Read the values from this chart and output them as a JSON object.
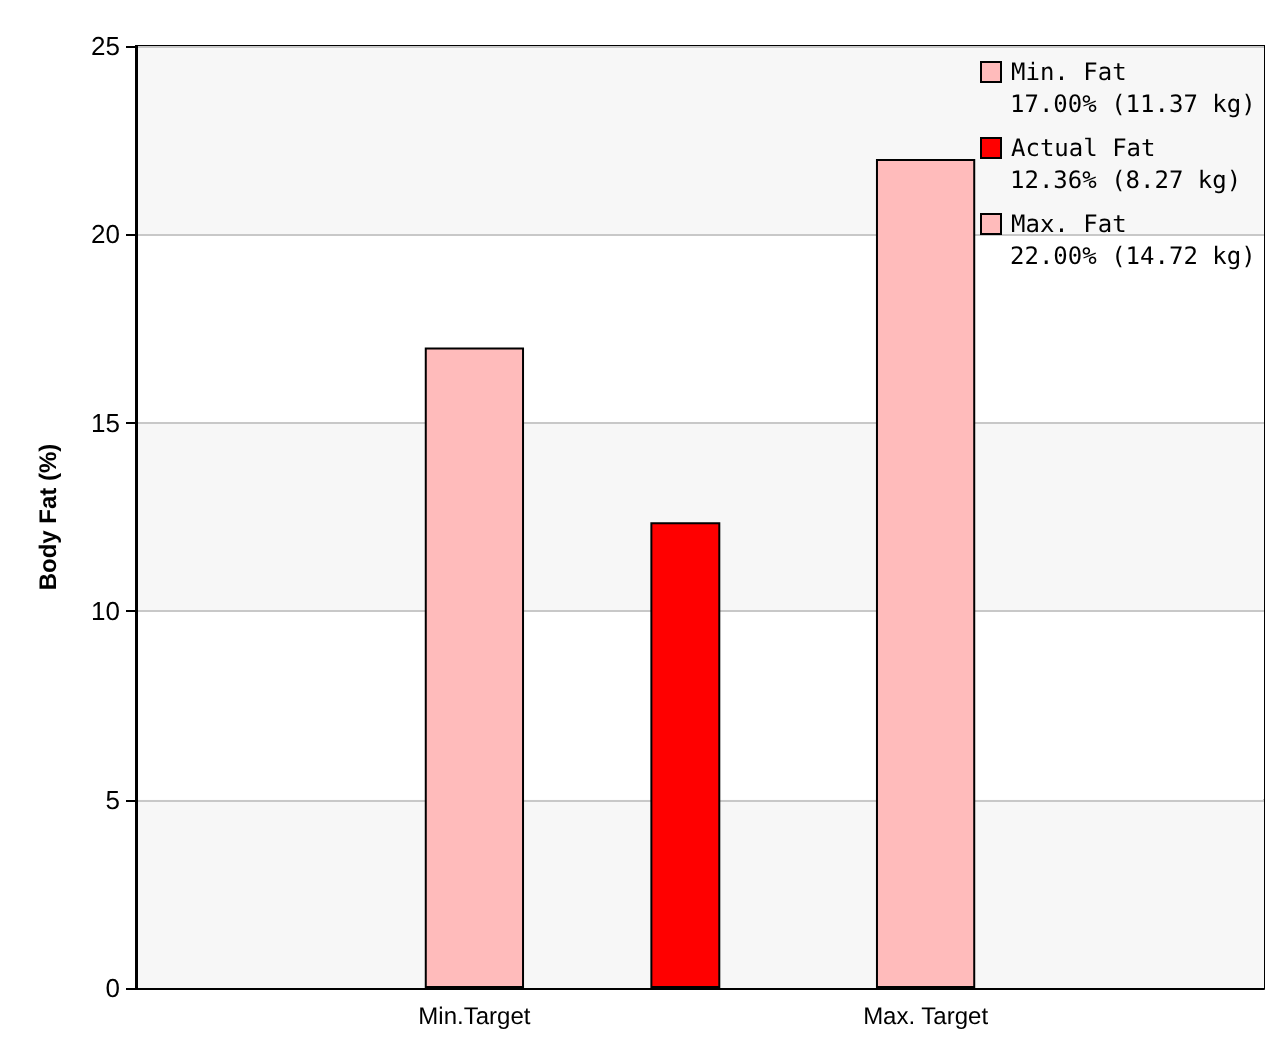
{
  "chart_data": {
    "type": "bar",
    "ylabel": "Body Fat (%)",
    "categories": [
      null,
      "Min.Target",
      null,
      "Max. Target",
      null
    ],
    "series": [
      {
        "name": "Min. Fat",
        "color": "#ffbbbb",
        "values": [
          null,
          17,
          null,
          null,
          null
        ]
      },
      {
        "name": "Actual Fat",
        "color": "#ff0000",
        "values": [
          null,
          null,
          12.36,
          null,
          null
        ]
      },
      {
        "name": "Max. Fat",
        "color": "#ffbbbb",
        "values": [
          null,
          null,
          null,
          22,
          null
        ]
      }
    ],
    "annotations": [
      "17.00% (11.37 kg)",
      "12.36% (8.27 kg)",
      "22.00% (14.72 kg)"
    ],
    "ylim": [
      0,
      25
    ],
    "yticks": [
      0,
      5,
      10,
      15,
      20,
      25
    ],
    "grid": "y",
    "legend": "top right"
  }
}
